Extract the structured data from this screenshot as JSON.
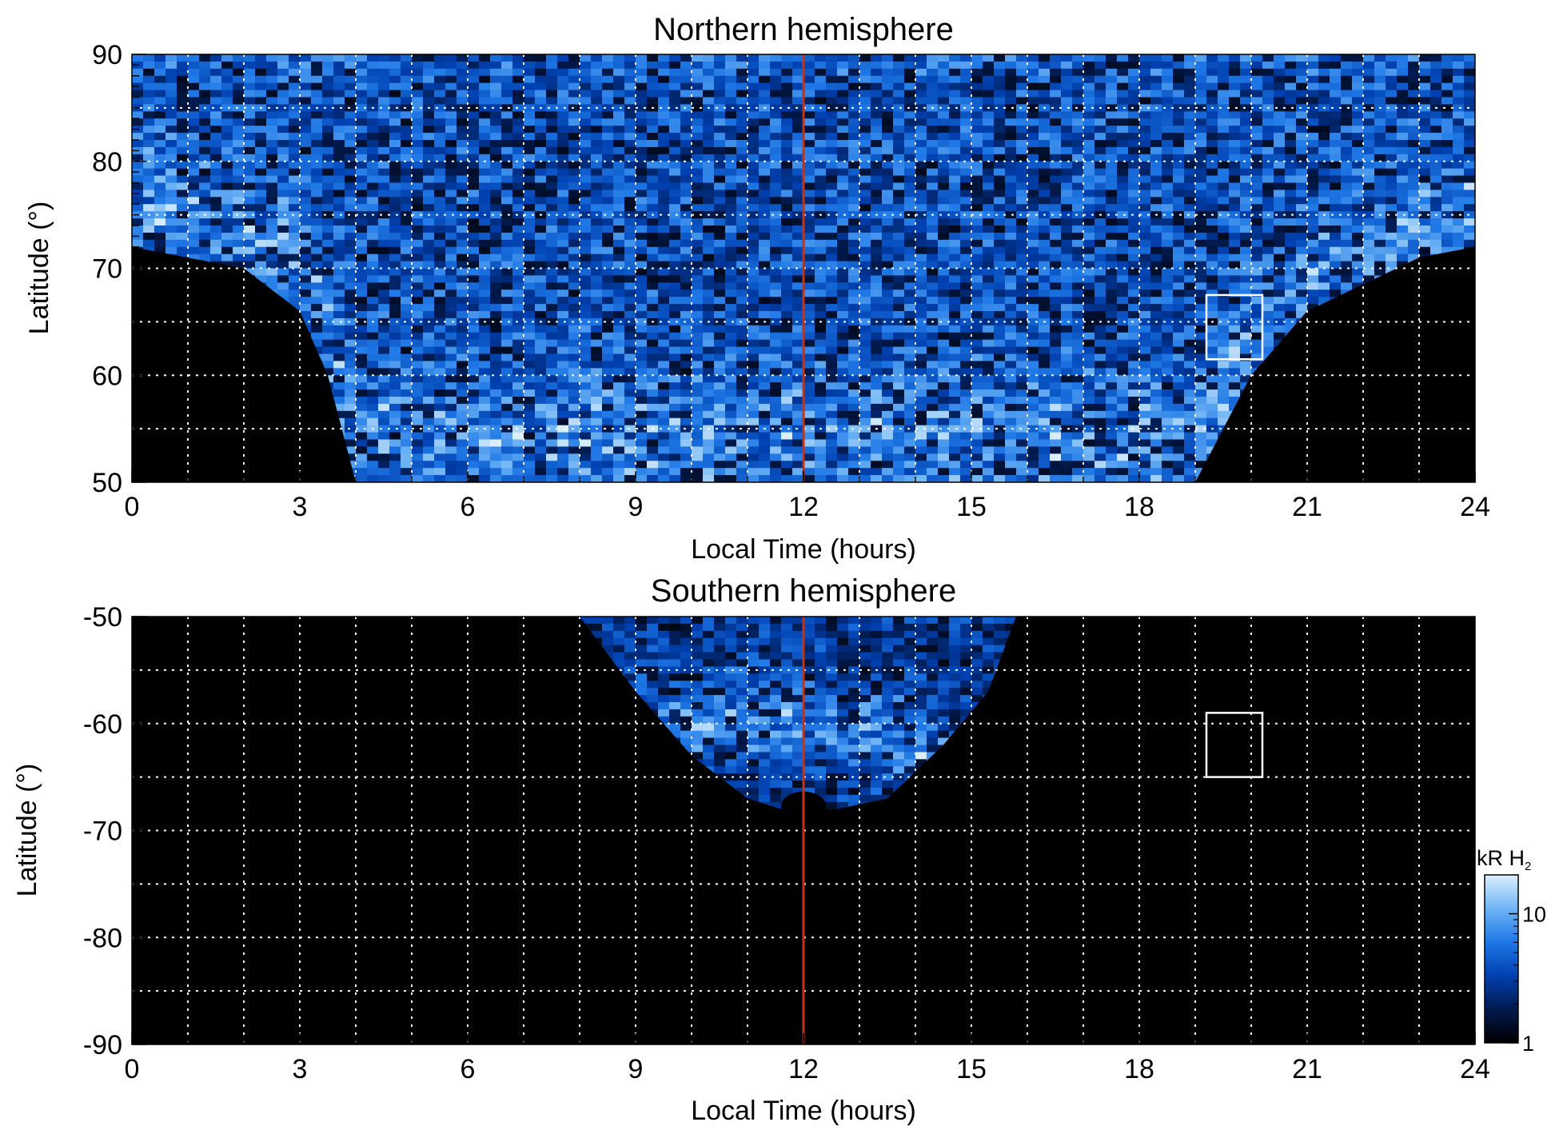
{
  "chart_data": [
    {
      "type": "heatmap",
      "title": "Northern hemisphere",
      "xlabel": "Local Time (hours)",
      "ylabel": "Latitude (°)",
      "xlim": [
        0,
        24
      ],
      "ylim": [
        50,
        90
      ],
      "xticks": [
        "0",
        "3",
        "6",
        "9",
        "12",
        "15",
        "18",
        "21",
        "24"
      ],
      "yticks": [
        "50",
        "60",
        "70",
        "80",
        "90"
      ],
      "grid": true,
      "marker_line": {
        "x": 12,
        "color": "#c0351a"
      },
      "box": {
        "x": [
          19.2,
          20.2
        ],
        "y": [
          61.5,
          67.5
        ]
      },
      "coverage_edge_lat": [
        [
          0,
          72
        ],
        [
          2,
          70
        ],
        [
          3,
          66
        ],
        [
          3.5,
          60
        ],
        [
          4,
          50
        ],
        [
          19,
          50
        ],
        [
          20,
          60
        ],
        [
          21,
          66
        ],
        [
          23,
          71
        ],
        [
          24,
          72
        ]
      ]
    },
    {
      "type": "heatmap",
      "title": "Southern hemisphere",
      "xlabel": "Local Time (hours)",
      "ylabel": "Latitude (°)",
      "xlim": [
        0,
        24
      ],
      "ylim": [
        -90,
        -50
      ],
      "xticks": [
        "0",
        "3",
        "6",
        "9",
        "12",
        "15",
        "18",
        "21",
        "24"
      ],
      "yticks": [
        "-90",
        "-80",
        "-70",
        "-60",
        "-50"
      ],
      "grid": true,
      "marker_line": {
        "x": 12,
        "color": "#c0351a"
      },
      "box": {
        "x": [
          19.2,
          20.2
        ],
        "y": [
          -65,
          -59
        ]
      },
      "coverage_edge_lat": [
        [
          8,
          -50
        ],
        [
          9,
          -57
        ],
        [
          10,
          -63
        ],
        [
          11,
          -67
        ],
        [
          11.6,
          -68
        ],
        [
          12.6,
          -68
        ],
        [
          13.5,
          -67
        ],
        [
          14.5,
          -62
        ],
        [
          15.3,
          -57
        ],
        [
          15.8,
          -50
        ]
      ]
    }
  ],
  "colorbar": {
    "label_kr": "kR H",
    "label_sub": "2",
    "scale": "log",
    "range": [
      1,
      20
    ],
    "ticks": [
      "1",
      "10"
    ],
    "colors": [
      "#000000",
      "#001a4d",
      "#0040b0",
      "#1f78e6",
      "#6fb4f5",
      "#dcefff"
    ]
  }
}
